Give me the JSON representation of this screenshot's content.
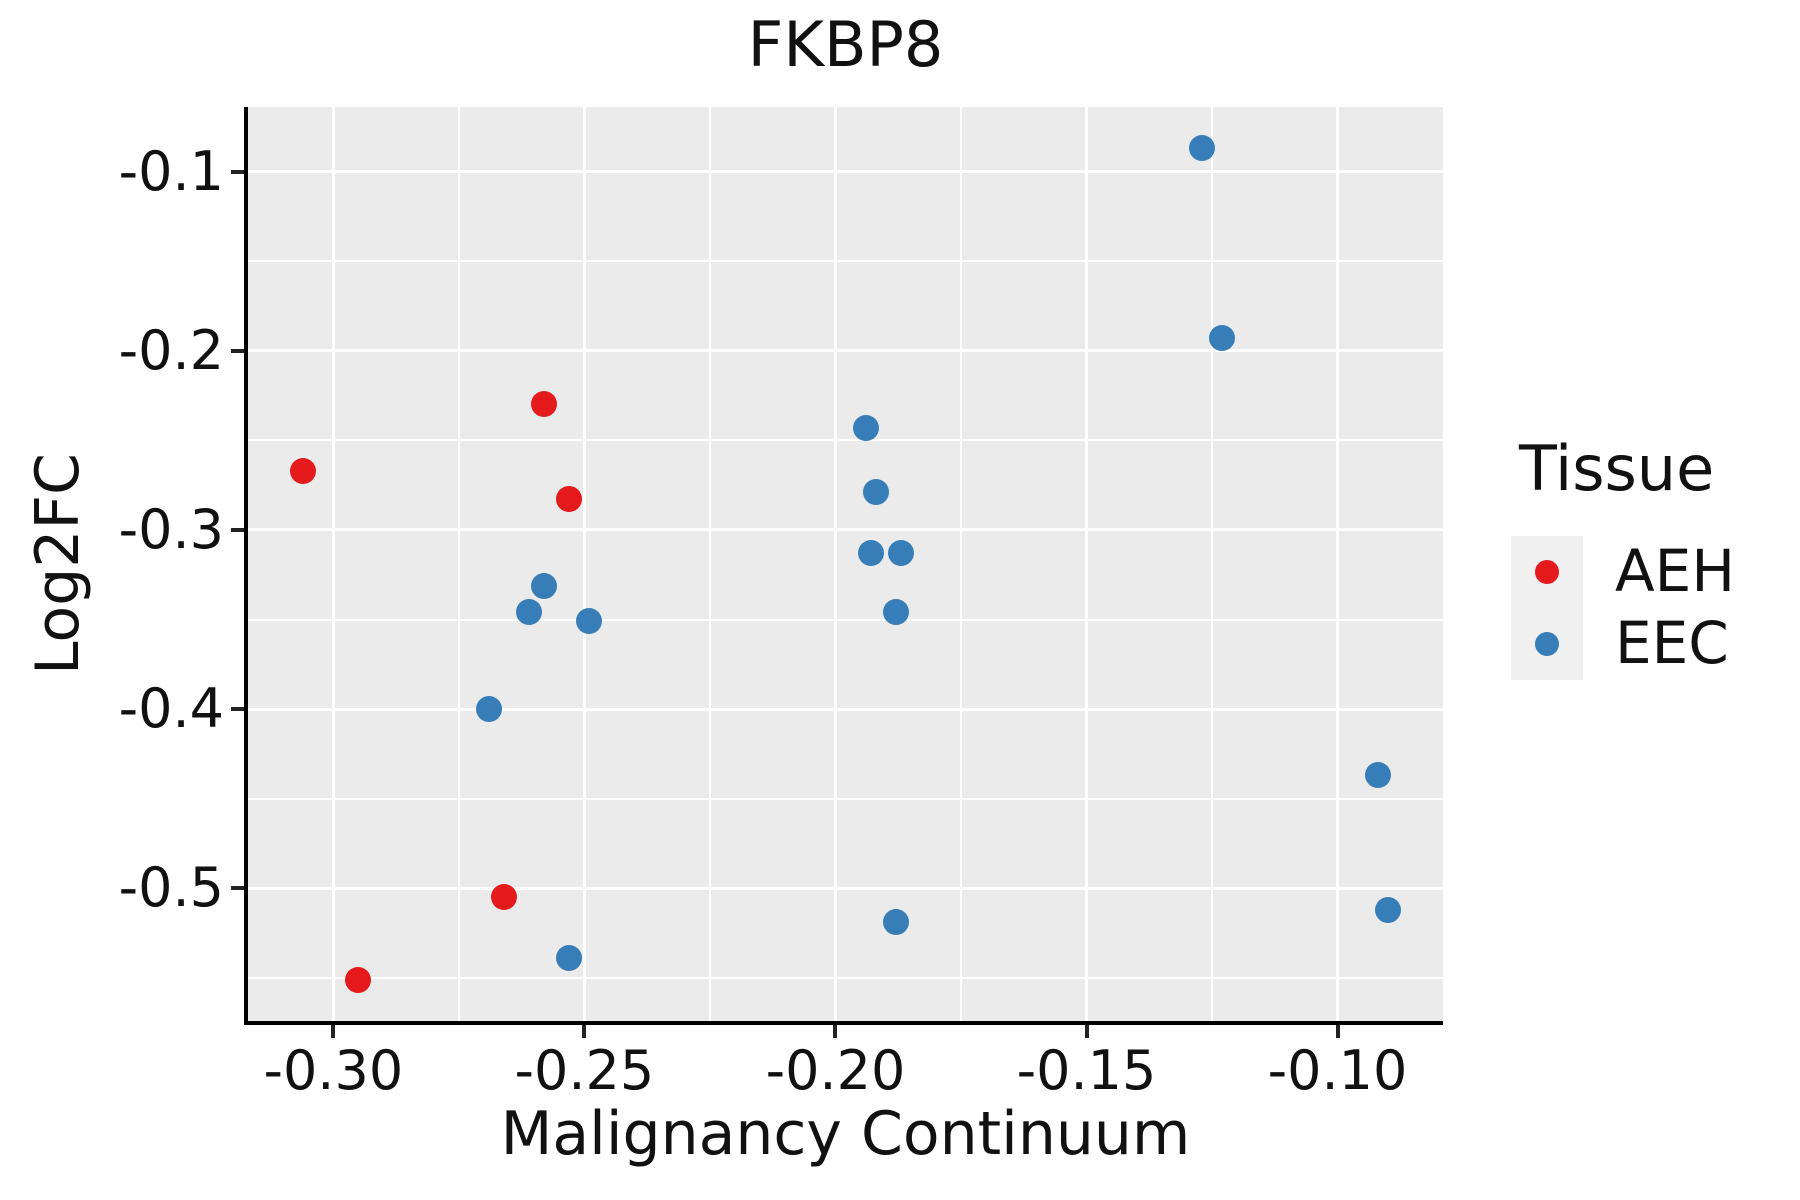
{
  "title": "FKBP8",
  "axes": {
    "x": {
      "label": "Malignancy Continuum",
      "tick_values": [
        -0.3,
        -0.25,
        -0.2,
        -0.15,
        -0.1
      ],
      "tick_labels": [
        "-0.30",
        "-0.25",
        "-0.20",
        "-0.15",
        "-0.10"
      ]
    },
    "y": {
      "label": "Log2FC",
      "tick_values": [
        -0.5,
        -0.4,
        -0.3,
        -0.2,
        -0.1
      ],
      "tick_labels": [
        "-0.5",
        "-0.4",
        "-0.3",
        "-0.2",
        "-0.1"
      ]
    }
  },
  "legend": {
    "title": "Tissue",
    "entries": [
      {
        "label": "AEH",
        "color": "#E41A1C"
      },
      {
        "label": "EEC",
        "color": "#377EB8"
      }
    ]
  },
  "colors": {
    "panel_background": "#EBEBEB",
    "gridline": "#FFFFFF",
    "axis_line": "#000000",
    "aeh_red": "#E41A1C",
    "eec_blue": "#377EB8"
  },
  "chart_data": {
    "type": "scatter",
    "title": "FKBP8",
    "xlabel": "Malignancy Continuum",
    "ylabel": "Log2FC",
    "xlim": [
      -0.317,
      -0.079
    ],
    "ylim": [
      -0.574,
      -0.064
    ],
    "x_major_ticks": [
      -0.3,
      -0.25,
      -0.2,
      -0.15,
      -0.1
    ],
    "y_major_ticks": [
      -0.5,
      -0.4,
      -0.3,
      -0.2,
      -0.1
    ],
    "grid": true,
    "legend_position": "right",
    "series": [
      {
        "name": "AEH",
        "color": "#E41A1C",
        "points": [
          [
            -0.306,
            -0.267
          ],
          [
            -0.258,
            -0.23
          ],
          [
            -0.253,
            -0.283
          ],
          [
            -0.266,
            -0.505
          ],
          [
            -0.295,
            -0.551
          ]
        ]
      },
      {
        "name": "EEC",
        "color": "#377EB8",
        "points": [
          [
            -0.269,
            -0.4
          ],
          [
            -0.261,
            -0.346
          ],
          [
            -0.258,
            -0.331
          ],
          [
            -0.249,
            -0.351
          ],
          [
            -0.253,
            -0.539
          ],
          [
            -0.194,
            -0.243
          ],
          [
            -0.192,
            -0.279
          ],
          [
            -0.193,
            -0.313
          ],
          [
            -0.187,
            -0.313
          ],
          [
            -0.188,
            -0.346
          ],
          [
            -0.188,
            -0.519
          ],
          [
            -0.127,
            -0.087
          ],
          [
            -0.123,
            -0.193
          ],
          [
            -0.092,
            -0.437
          ],
          [
            -0.09,
            -0.512
          ]
        ]
      }
    ]
  }
}
